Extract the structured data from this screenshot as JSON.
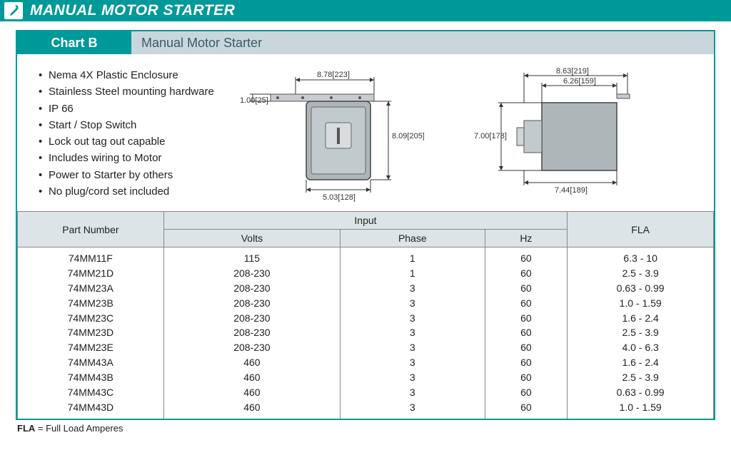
{
  "banner": {
    "title": "MANUAL MOTOR STARTER",
    "accent": "#009999"
  },
  "chart": {
    "label": "Chart B",
    "subtitle": "Manual Motor Starter",
    "header_bg": "#c9d7dc"
  },
  "bullets": [
    "Nema 4X Plastic Enclosure",
    "Stainless Steel mounting hardware",
    "IP 66",
    "Start / Stop Switch",
    "Lock out tag out capable",
    "Includes wiring to Motor",
    "Power to Starter by others",
    "No plug/cord set included"
  ],
  "diagram": {
    "front": {
      "top_dim": "8.78[223]",
      "left_dim": "1.00[25]",
      "right_dim": "8.09[205]",
      "bottom_dim": "5.03[128]",
      "box_fill": "#b8c0c4",
      "box_stroke": "#444"
    },
    "side": {
      "top_dim1": "8.63[219]",
      "top_dim2": "6.26[159]",
      "left_dim": "7.00[178]",
      "bottom_dim": "7.44[189]",
      "box_fill": "#b8c0c4",
      "box_stroke": "#444"
    }
  },
  "table": {
    "group_header": "Input",
    "columns": [
      "Part Number",
      "Volts",
      "Phase",
      "Hz",
      "FLA"
    ],
    "rows": [
      [
        "74MM11F",
        "115",
        "1",
        "60",
        "6.3 - 10"
      ],
      [
        "74MM21D",
        "208-230",
        "1",
        "60",
        "2.5 - 3.9"
      ],
      [
        "74MM23A",
        "208-230",
        "3",
        "60",
        "0.63 - 0.99"
      ],
      [
        "74MM23B",
        "208-230",
        "3",
        "60",
        "1.0 - 1.59"
      ],
      [
        "74MM23C",
        "208-230",
        "3",
        "60",
        "1.6 - 2.4"
      ],
      [
        "74MM23D",
        "208-230",
        "3",
        "60",
        "2.5 - 3.9"
      ],
      [
        "74MM23E",
        "208-230",
        "3",
        "60",
        "4.0 - 6.3"
      ],
      [
        "74MM43A",
        "460",
        "3",
        "60",
        "1.6 - 2.4"
      ],
      [
        "74MM43B",
        "460",
        "3",
        "60",
        "2.5 - 3.9"
      ],
      [
        "74MM43C",
        "460",
        "3",
        "60",
        "0.63 - 0.99"
      ],
      [
        "74MM43D",
        "460",
        "3",
        "60",
        "1.0 - 1.59"
      ]
    ]
  },
  "footnote": {
    "bold": "FLA",
    "rest": " = Full Load Amperes"
  }
}
